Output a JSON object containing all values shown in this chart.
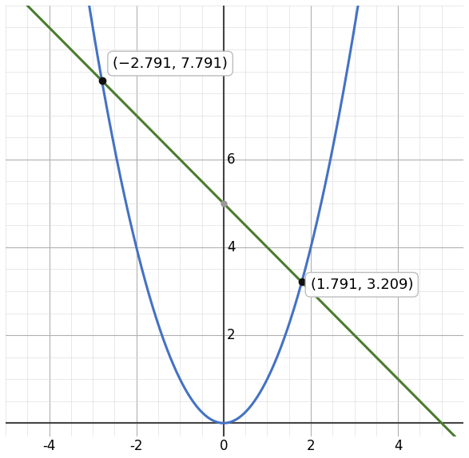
{
  "xlim": [
    -4.6,
    5.4
  ],
  "ylim": [
    -0.3,
    9.5
  ],
  "xticks": [
    -4,
    -2,
    0,
    2,
    4
  ],
  "yticks": [
    2,
    4,
    6
  ],
  "parabola_color": "#4472C4",
  "line_color": "#4a7c2f",
  "intersection1": [
    -2.791,
    7.791
  ],
  "intersection2": [
    1.791,
    3.209
  ],
  "label1": "(−2.791, 7.791)",
  "label2": "(1.791, 3.209)",
  "dot_color": "#111111",
  "grid_color_major": "#b0b0b0",
  "grid_color_minor": "#d8d8d8",
  "background_color": "#ffffff",
  "line_slope": -1,
  "line_intercept": 5,
  "figsize": [
    5.87,
    5.74
  ],
  "dpi": 100,
  "axis_color": "#444444",
  "tick_fontsize": 12,
  "annot_fontsize": 13,
  "yaxis_intercept_dot_color": "#999999"
}
